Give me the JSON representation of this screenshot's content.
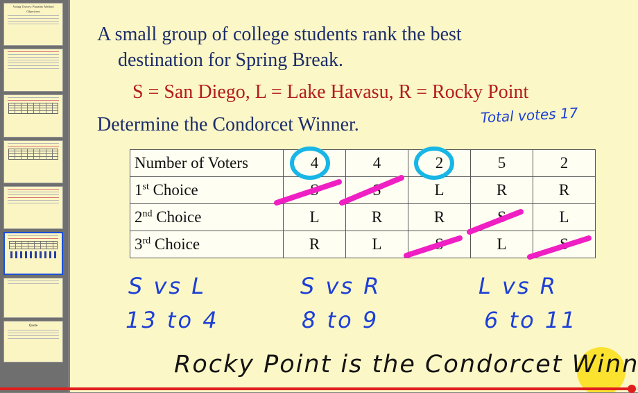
{
  "thumbnails": {
    "first_title": "Voting Theory: Plurality Method",
    "first_subtitle": "Objectives",
    "quote_title": "Quote",
    "active_index": 5
  },
  "slide": {
    "question_line1": "A small group of college students rank the best",
    "question_line2": "destination for Spring Break.",
    "legend": "S = San Diego, L = Lake Havasu,  R = Rocky Point",
    "task": "Determine the Condorcet Winner."
  },
  "table": {
    "header_label": "Number of Voters",
    "voter_counts": [
      "4",
      "4",
      "2",
      "5",
      "2"
    ],
    "rows": [
      {
        "ordinal": "1",
        "suffix": "st",
        "label": " Choice",
        "values": [
          "S",
          "S",
          "L",
          "R",
          "R"
        ]
      },
      {
        "ordinal": "2",
        "suffix": "nd",
        "label": " Choice",
        "values": [
          "L",
          "R",
          "R",
          "S",
          "L"
        ]
      },
      {
        "ordinal": "3",
        "suffix": "rd",
        "label": " Choice",
        "values": [
          "R",
          "L",
          "S",
          "L",
          "S"
        ]
      }
    ]
  },
  "annotations": {
    "total_votes": "Total votes  17",
    "pair1": "S vs L",
    "score1": "13 to 4",
    "pair2": "S vs R",
    "score2": "8 to 9",
    "pair3": "L vs R",
    "score3": "6 to 11",
    "conclusion": "Rocky Point is the Condorcet Winner."
  },
  "colors": {
    "title_text": "#1c2d6b",
    "legend_text": "#b21d1d",
    "handwriting": "#1d3fd6",
    "circle": "#18b6e6",
    "strike": "#ef1fc4",
    "slide_bg": "#fbf7c6",
    "progress": "#e01e1e"
  },
  "player": {
    "progress_fraction": 0.99
  }
}
